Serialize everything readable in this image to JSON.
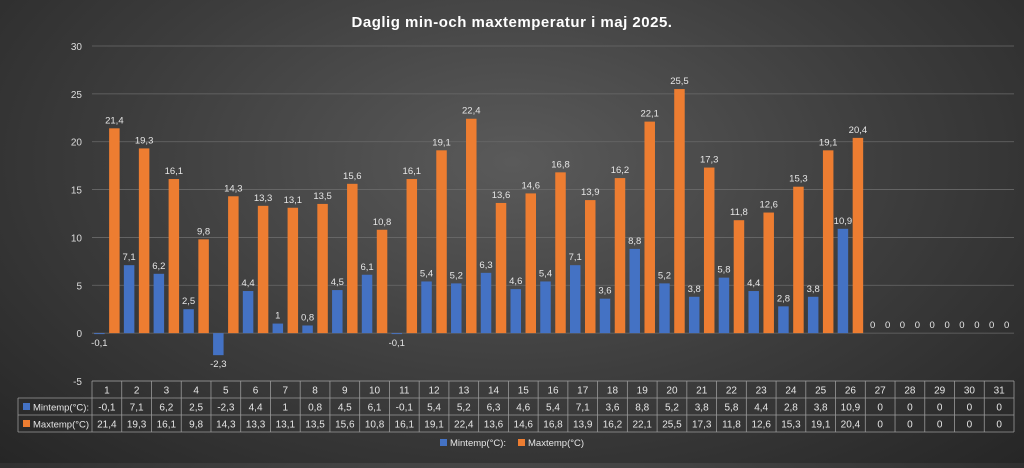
{
  "chart_data": {
    "type": "bar",
    "title": "Daglig min-och maxtemperatur i maj 2025.",
    "xlabel": "",
    "ylabel": "",
    "ylim": [
      -5,
      30
    ],
    "yticks": [
      -5,
      0,
      5,
      10,
      15,
      20,
      25,
      30
    ],
    "grid": true,
    "legend": "bottom",
    "categories": [
      "1",
      "2",
      "3",
      "4",
      "5",
      "6",
      "7",
      "8",
      "9",
      "10",
      "11",
      "12",
      "13",
      "14",
      "15",
      "16",
      "17",
      "18",
      "19",
      "20",
      "21",
      "22",
      "23",
      "24",
      "25",
      "26",
      "27",
      "28",
      "29",
      "30",
      "31"
    ],
    "series": [
      {
        "name": "Mintemp(°C):",
        "color": "#4472c4",
        "values": [
          -0.1,
          7.1,
          6.2,
          2.5,
          -2.3,
          4.4,
          1,
          0.8,
          4.5,
          6.1,
          -0.1,
          5.4,
          5.2,
          6.3,
          4.6,
          5.4,
          7.1,
          3.6,
          8.8,
          5.2,
          3.8,
          5.8,
          4.4,
          2.8,
          3.8,
          10.9,
          0,
          0,
          0,
          0,
          0
        ],
        "labels": [
          "-0,1",
          "7,1",
          "6,2",
          "2,5",
          "-2,3",
          "4,4",
          "1",
          "0,8",
          "4,5",
          "6,1",
          "-0,1",
          "5,4",
          "5,2",
          "6,3",
          "4,6",
          "5,4",
          "7,1",
          "3,6",
          "8,8",
          "5,2",
          "3,8",
          "5,8",
          "4,4",
          "2,8",
          "3,8",
          "10,9",
          "0",
          "0",
          "0",
          "0",
          "0"
        ]
      },
      {
        "name": "Maxtemp(°C)",
        "color": "#ed7d31",
        "values": [
          21.4,
          19.3,
          16.1,
          9.8,
          14.3,
          13.3,
          13.1,
          13.5,
          15.6,
          10.8,
          16.1,
          19.1,
          22.4,
          13.6,
          14.6,
          16.8,
          13.9,
          16.2,
          22.1,
          25.5,
          17.3,
          11.8,
          12.6,
          15.3,
          19.1,
          20.4,
          0,
          0,
          0,
          0,
          0
        ],
        "labels": [
          "21,4",
          "19,3",
          "16,1",
          "9,8",
          "14,3",
          "13,3",
          "13,1",
          "13,5",
          "15,6",
          "10,8",
          "16,1",
          "19,1",
          "22,4",
          "13,6",
          "14,6",
          "16,8",
          "13,9",
          "16,2",
          "22,1",
          "25,5",
          "17,3",
          "11,8",
          "12,6",
          "15,3",
          "19,1",
          "20,4",
          "0",
          "0",
          "0",
          "0",
          "0"
        ]
      }
    ]
  }
}
